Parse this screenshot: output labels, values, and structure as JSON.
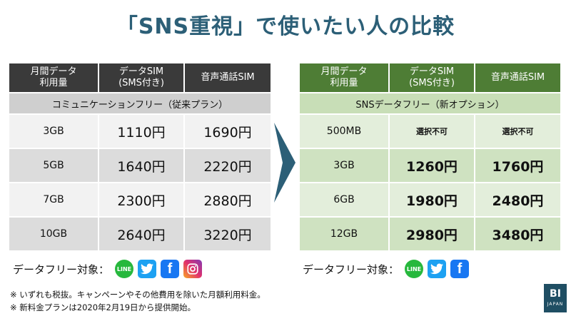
{
  "title": "「SNS重視」で使いたい人の比較",
  "left_table": {
    "headers": [
      "月間データ\n利用量",
      "データSIM\n(SMS付き)",
      "音声通話SIM"
    ],
    "section": "コミュニケーションフリー（従来プラン）",
    "rows": [
      {
        "capacity": "3GB",
        "data_sim": "1110円",
        "voice_sim": "1690円"
      },
      {
        "capacity": "5GB",
        "data_sim": "1640円",
        "voice_sim": "2220円"
      },
      {
        "capacity": "7GB",
        "data_sim": "2300円",
        "voice_sim": "2880円"
      },
      {
        "capacity": "10GB",
        "data_sim": "2640円",
        "voice_sim": "3220円"
      }
    ]
  },
  "right_table": {
    "headers": [
      "月間データ\n利用量",
      "データSIM\n(SMS付き)",
      "音声通話SIM"
    ],
    "section": "SNSデータフリー（新オプション）",
    "rows": [
      {
        "capacity": "500MB",
        "data_sim": "選択不可",
        "voice_sim": "選択不可"
      },
      {
        "capacity": "3GB",
        "data_sim": "1260円",
        "voice_sim": "1760円"
      },
      {
        "capacity": "6GB",
        "data_sim": "1980円",
        "voice_sim": "2480円"
      },
      {
        "capacity": "12GB",
        "data_sim": "2980円",
        "voice_sim": "3480円"
      }
    ]
  },
  "data_free_left": {
    "label": "データフリー対象：",
    "icons": [
      "line-icon",
      "twitter-icon",
      "facebook-icon",
      "instagram-icon"
    ],
    "line_text": "LINE"
  },
  "data_free_right": {
    "label": "データフリー対象：",
    "icons": [
      "line-icon",
      "twitter-icon",
      "facebook-icon"
    ],
    "line_text": "LINE"
  },
  "notes": [
    "※ いずれも税抜。キャンペーンやその他費用を除いた月額利用料金。",
    "※ 新料金プランは2020年2月19日から提供開始。"
  ],
  "logo": {
    "big": "BI",
    "small": "JAPAN"
  },
  "colors": {
    "title": "#2c5f77",
    "left_header": "#3a3a3a",
    "right_header": "#4e7d35",
    "arrow": "#2c5f77"
  }
}
